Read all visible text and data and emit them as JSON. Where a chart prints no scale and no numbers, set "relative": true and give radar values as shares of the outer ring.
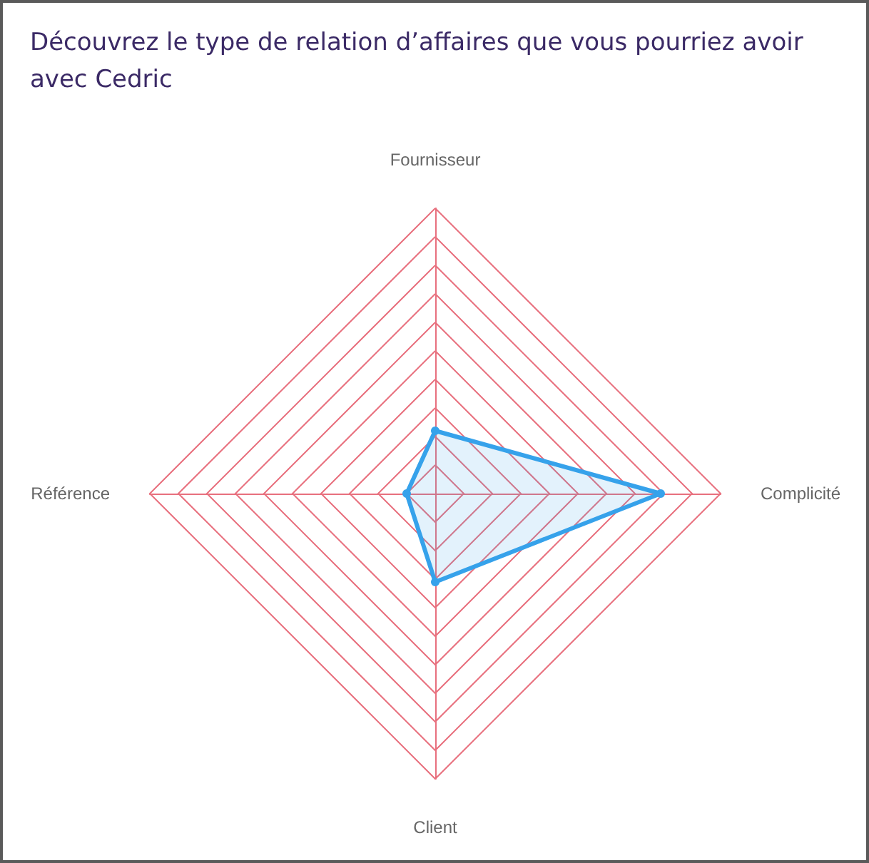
{
  "chart_data": {
    "type": "radar",
    "title": "Découvrez le type de relation d’affaires que vous pourriez avoir avec Cedric",
    "categories": [
      "Fournisseur",
      "Complicité",
      "Client",
      "Référence"
    ],
    "relative": true,
    "series": [
      {
        "color": "#36a2eb",
        "values": [
          0.22,
          0.79,
          0.31,
          0.1
        ]
      }
    ],
    "grid": true,
    "marker": "circle"
  }
}
